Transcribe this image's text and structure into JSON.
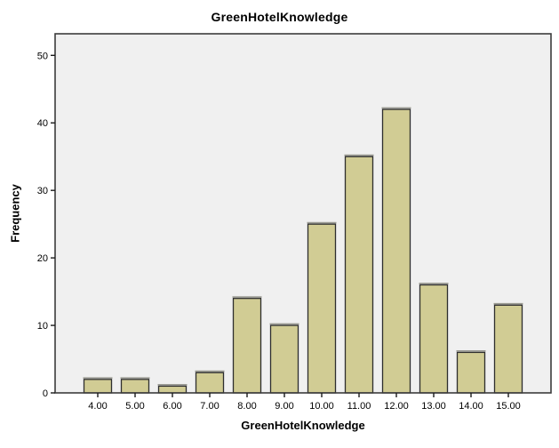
{
  "figure": {
    "background": "#FFFFFF"
  },
  "chart_data": {
    "type": "bar",
    "title": "GreenHotelKnowledge",
    "xlabel": "GreenHotelKnowledge",
    "ylabel": "Frequency",
    "categories": [
      "4.00",
      "5.00",
      "6.00",
      "7.00",
      "8.00",
      "9.00",
      "10.00",
      "11.00",
      "12.00",
      "13.00",
      "14.00",
      "15.00"
    ],
    "values": [
      2,
      2,
      1,
      3,
      14,
      10,
      25,
      35,
      42,
      16,
      6,
      13
    ],
    "yticks": [
      0,
      10,
      20,
      30,
      40,
      50
    ],
    "ylim": [
      0,
      53.2
    ],
    "grid": false,
    "legend": false,
    "colors": {
      "bar_fill": "#D1CC94",
      "bar_stroke": "#2E2E2E",
      "bar_shadow": "#9B9B93",
      "plot_background": "#F0F0F0",
      "frame": "#3C3C3C",
      "tick": "#1A1A1A",
      "text": "#000000"
    }
  }
}
